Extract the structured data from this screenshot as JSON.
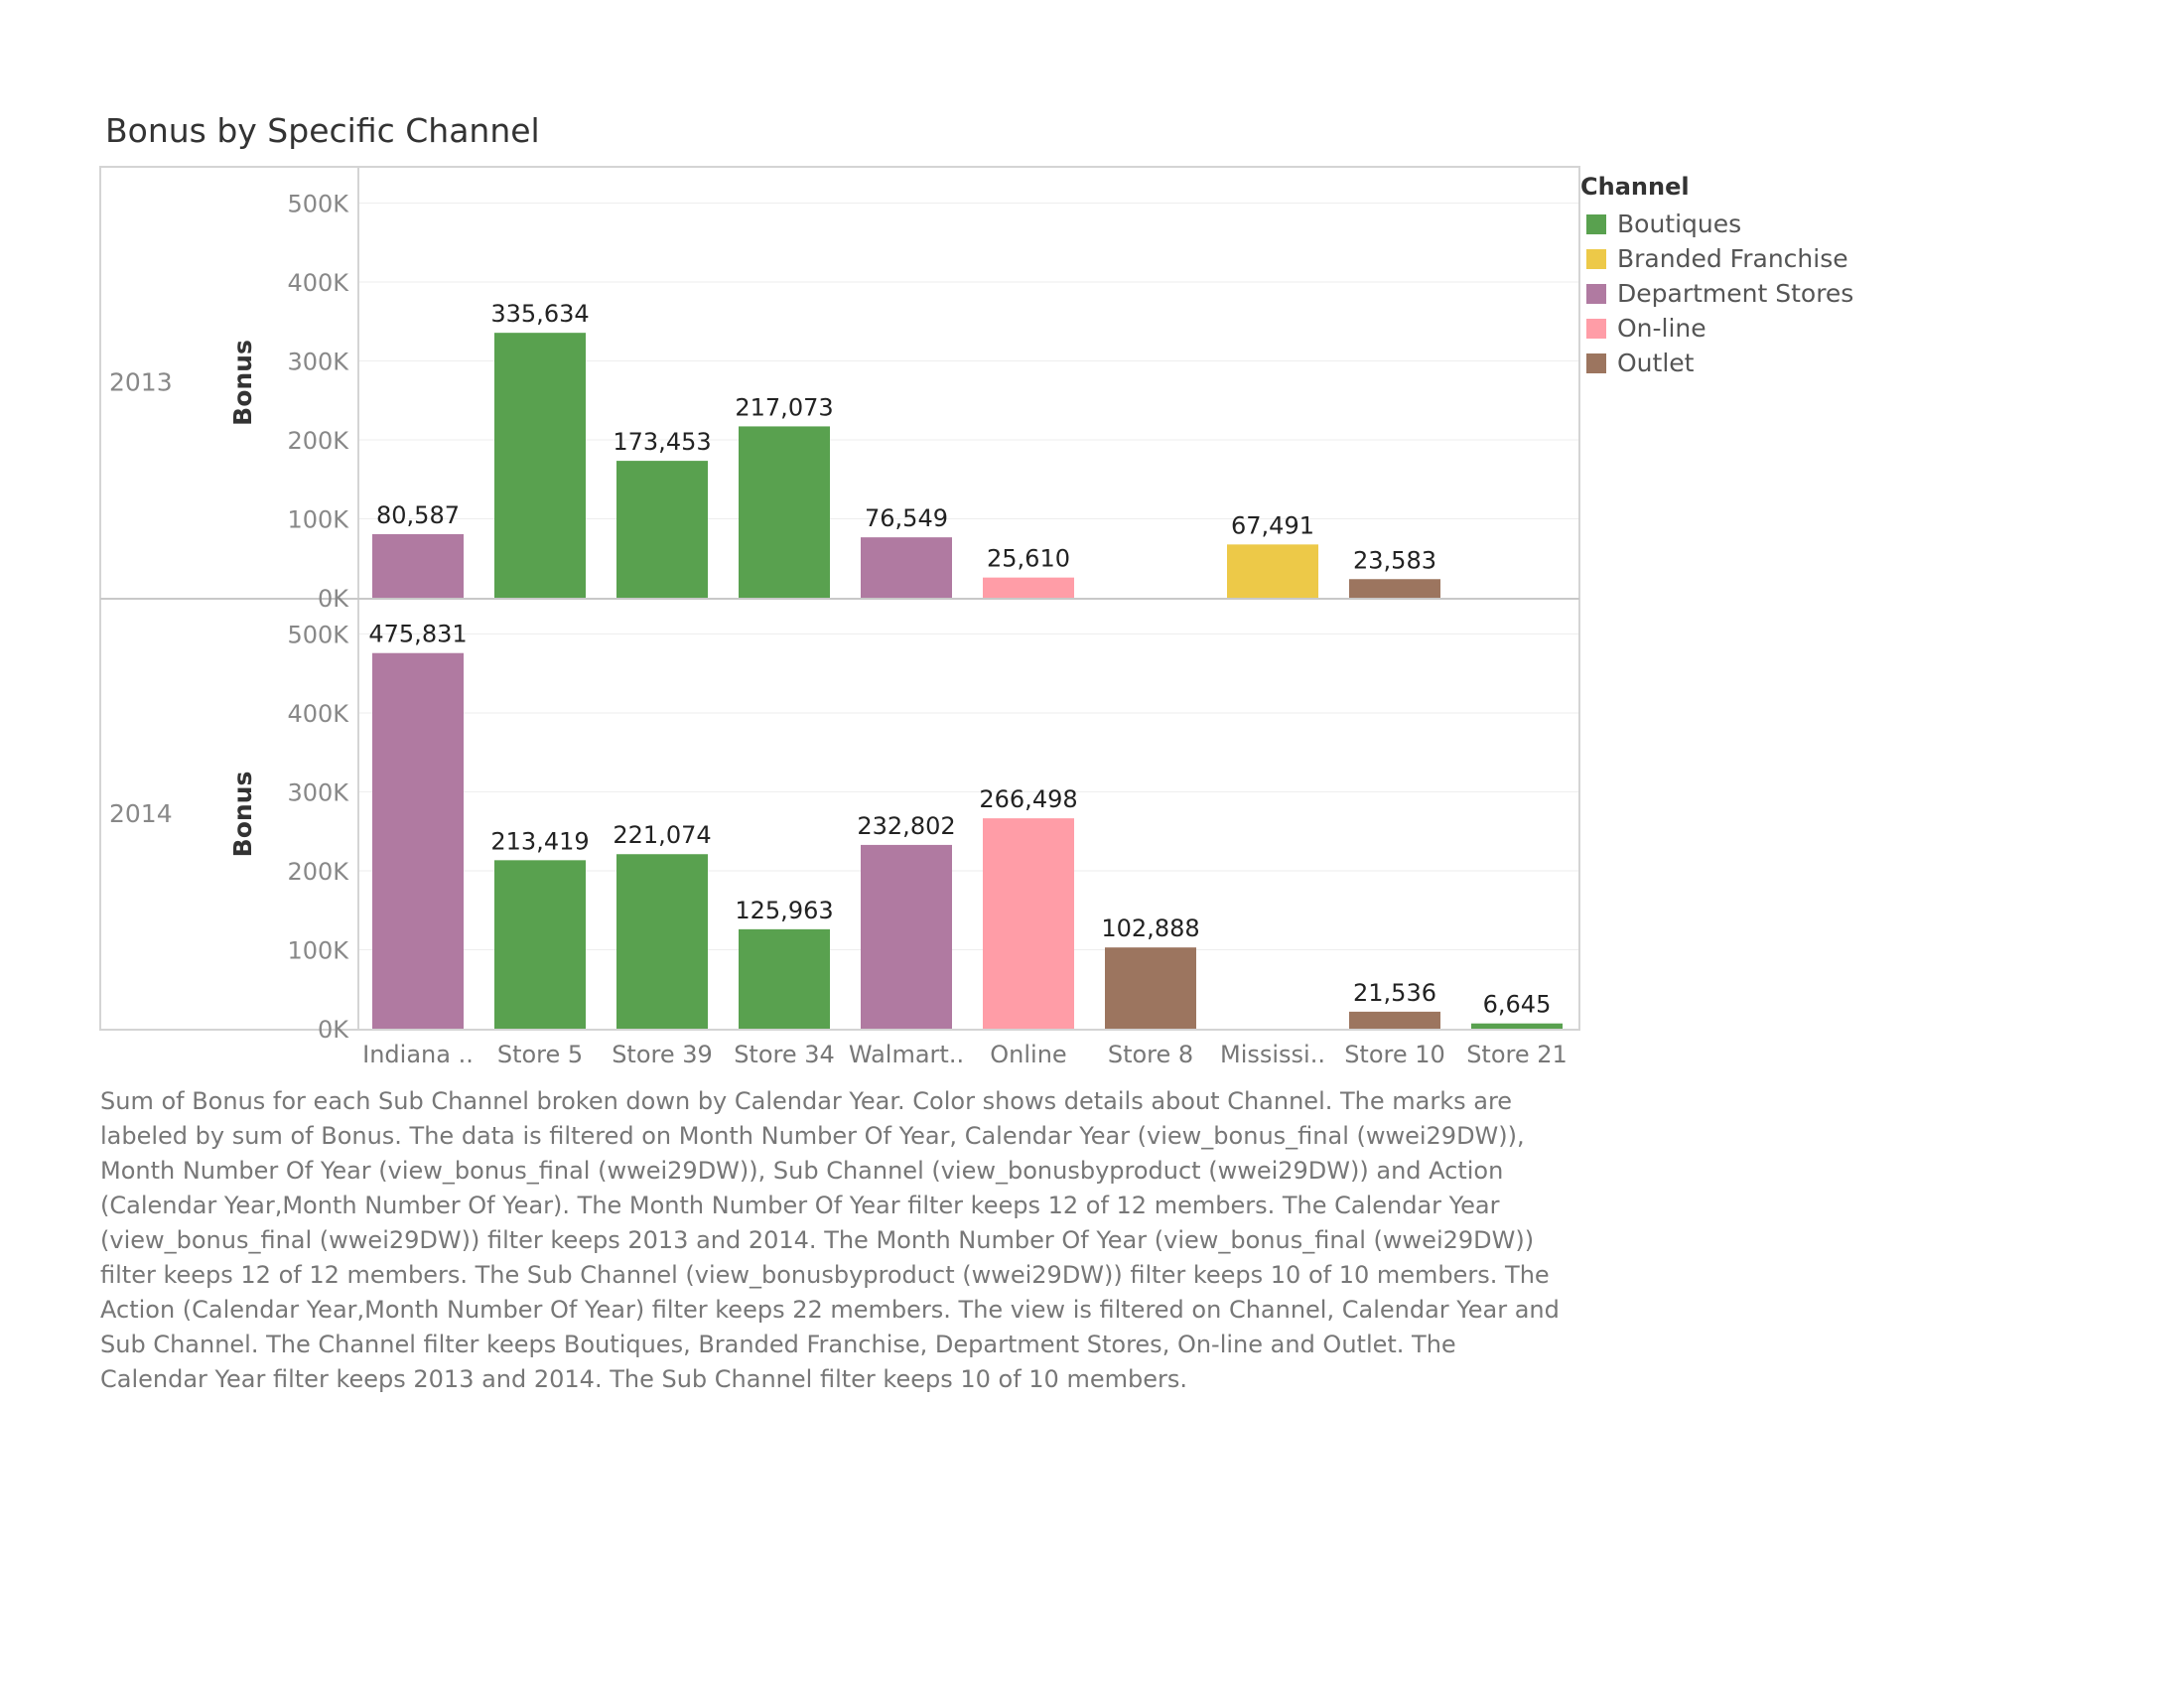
{
  "chart_data": {
    "type": "bar",
    "title": "Bonus by Specific Channel",
    "categories": [
      "Indiana ..",
      "Store 5",
      "Store 39",
      "Store 34",
      "Walmart..",
      "Online",
      "Store 8",
      "Mississi..",
      "Store 10",
      "Store 21"
    ],
    "rows": [
      {
        "label": "2013",
        "ylabel": "Bonus",
        "values": [
          80587,
          335634,
          173453,
          217073,
          76549,
          25610,
          null,
          67491,
          23583,
          null
        ],
        "value_labels": [
          "80,587",
          "335,634",
          "173,453",
          "217,073",
          "76,549",
          "25,610",
          "",
          "67,491",
          "23,583",
          ""
        ],
        "channels": [
          "Department Stores",
          "Boutiques",
          "Boutiques",
          "Boutiques",
          "Department Stores",
          "On-line",
          "",
          "Branded Franchise",
          "Outlet",
          ""
        ]
      },
      {
        "label": "2014",
        "ylabel": "Bonus",
        "values": [
          475831,
          213419,
          221074,
          125963,
          232802,
          266498,
          102888,
          null,
          21536,
          6645
        ],
        "value_labels": [
          "475,831",
          "213,419",
          "221,074",
          "125,963",
          "232,802",
          "266,498",
          "102,888",
          "",
          "21,536",
          "6,645"
        ],
        "channels": [
          "Department Stores",
          "Boutiques",
          "Boutiques",
          "Boutiques",
          "Department Stores",
          "On-line",
          "Outlet",
          "",
          "Outlet",
          "Boutiques"
        ]
      }
    ],
    "yticks": [
      0,
      100000,
      200000,
      300000,
      400000,
      500000
    ],
    "ytick_labels": [
      "0K",
      "100K",
      "200K",
      "300K",
      "400K",
      "500K"
    ],
    "ylim": [
      0,
      510000
    ],
    "legend": {
      "title": "Channel",
      "placement": "right",
      "items": [
        {
          "name": "Boutiques",
          "color": "#59a14f"
        },
        {
          "name": "Branded Franchise",
          "color": "#edc948"
        },
        {
          "name": "Department Stores",
          "color": "#b07aa1"
        },
        {
          "name": "On-line",
          "color": "#ff9da7"
        },
        {
          "name": "Outlet",
          "color": "#9c755f"
        }
      ]
    },
    "grid": true
  },
  "caption": "Sum of Bonus for each Sub Channel broken down by Calendar Year.  Color shows details about Channel.  The marks are labeled by sum of Bonus. The data is filtered on Month Number Of Year, Calendar Year (view_bonus_final (wwei29DW)), Month Number Of Year (view_bonus_final (wwei29DW)), Sub Channel (view_bonusbyproduct (wwei29DW)) and Action (Calendar Year,Month Number Of Year). The Month Number Of Year filter keeps 12 of 12 members. The Calendar Year (view_bonus_final (wwei29DW)) filter keeps 2013 and 2014. The Month Number Of Year (view_bonus_final (wwei29DW)) filter keeps 12 of 12 members. The Sub Channel (view_bonusbyproduct (wwei29DW)) filter keeps 10 of 10 members. The Action (Calendar Year,Month Number Of Year) filter keeps 22 members. The view is filtered on Channel, Calendar Year and Sub Channel. The Channel filter keeps Boutiques, Branded Franchise, Department Stores, On-line and Outlet. The Calendar Year filter keeps 2013 and 2014. The Sub Channel filter keeps 10 of 10 members."
}
